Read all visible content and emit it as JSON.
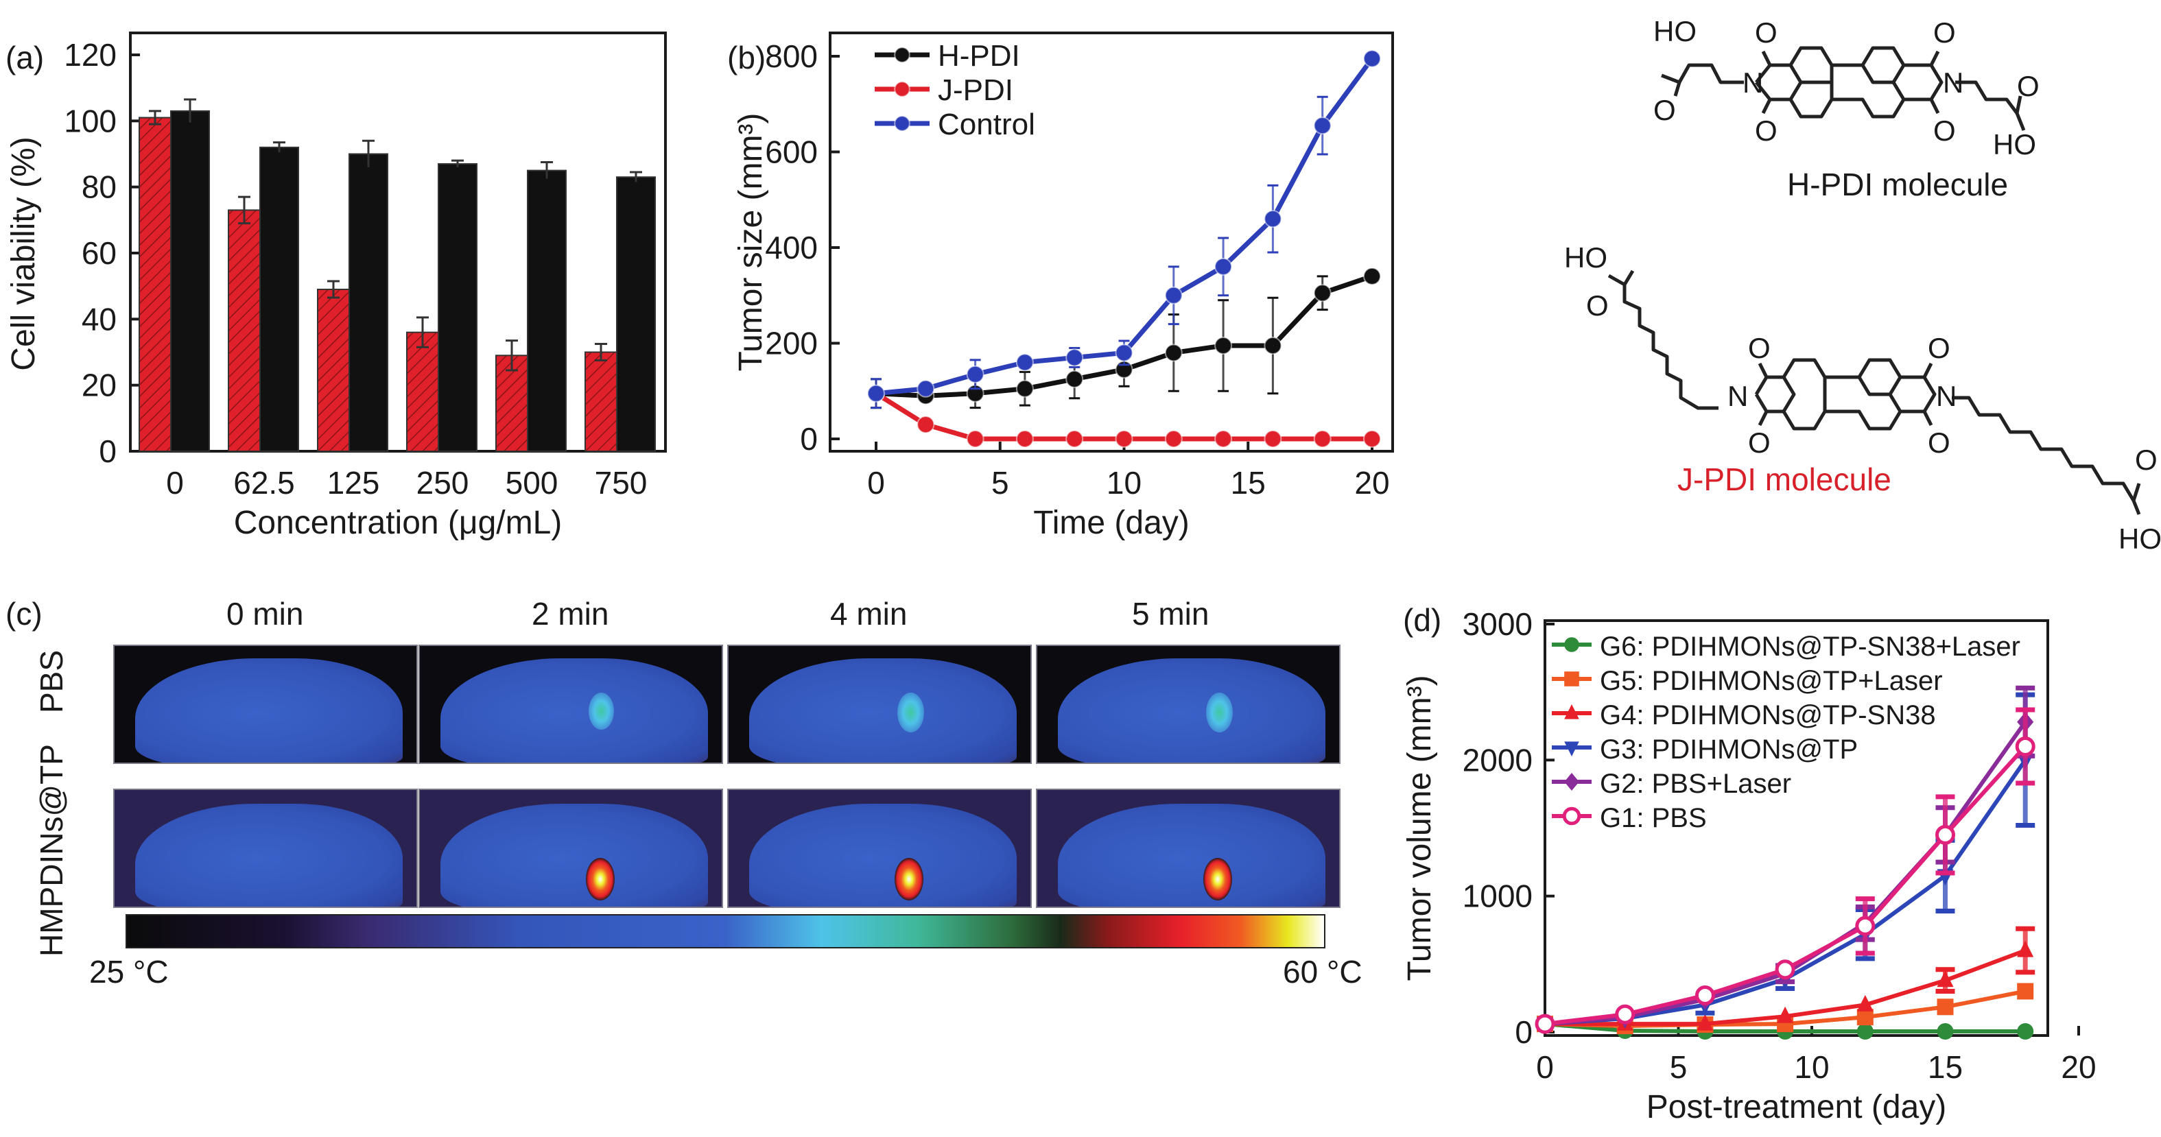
{
  "chart_data": [
    {
      "id": "a",
      "panel_label": "(a)",
      "type": "bar",
      "title": "",
      "xlabel": "Concentration (μg/mL)",
      "ylabel": "Cell viability (%)",
      "categories": [
        "0",
        "62.5",
        "125",
        "250",
        "500",
        "750"
      ],
      "ylim": [
        0,
        120
      ],
      "yticks": [
        0,
        20,
        40,
        60,
        80,
        100,
        120
      ],
      "legend": "none",
      "series": [
        {
          "name": "red-hatched",
          "color": "#e0202a",
          "pattern": "hatched",
          "values": [
            101,
            73,
            49,
            36,
            29,
            30
          ],
          "errors": [
            2,
            4,
            2.5,
            4.5,
            4.5,
            2.5
          ]
        },
        {
          "name": "black",
          "color": "#111111",
          "pattern": "solid",
          "values": [
            103,
            92,
            90,
            87,
            85,
            83
          ],
          "errors": [
            3.5,
            1.5,
            4,
            1,
            2.5,
            1.5
          ]
        }
      ]
    },
    {
      "id": "b",
      "panel_label": "(b)",
      "type": "line",
      "title": "",
      "xlabel": "Time (day)",
      "ylabel": "Tumor size (mm³)",
      "xlim": [
        -2,
        22
      ],
      "xticks": [
        0,
        5,
        10,
        15,
        20
      ],
      "ylim": [
        -20,
        850
      ],
      "yticks": [
        0,
        200,
        400,
        600,
        800
      ],
      "legend": "top-left",
      "x": [
        0,
        2,
        4,
        6,
        8,
        10,
        12,
        14,
        16,
        18,
        20
      ],
      "series": [
        {
          "name": "H-PDI",
          "color": "#111111",
          "values": [
            95,
            90,
            95,
            105,
            125,
            145,
            180,
            195,
            195,
            305,
            340
          ],
          "errors": [
            30,
            10,
            30,
            35,
            40,
            35,
            80,
            95,
            100,
            35,
            0
          ]
        },
        {
          "name": "J-PDI",
          "color": "#e0202a",
          "values": [
            95,
            30,
            0,
            0,
            0,
            0,
            0,
            0,
            0,
            0,
            0
          ],
          "errors": [
            0,
            0,
            0,
            0,
            0,
            0,
            0,
            0,
            0,
            0,
            0
          ]
        },
        {
          "name": "Control",
          "color": "#2c3fb8",
          "values": [
            95,
            105,
            135,
            160,
            170,
            180,
            300,
            360,
            460,
            655,
            795
          ],
          "errors": [
            30,
            0,
            30,
            0,
            20,
            25,
            60,
            60,
            70,
            60,
            0
          ]
        }
      ]
    },
    {
      "id": "d",
      "panel_label": "(d)",
      "type": "line",
      "title": "",
      "xlabel": "Post-treatment (day)",
      "ylabel": "Tumor volume (mm³)",
      "xlim": [
        0,
        20
      ],
      "xticks": [
        0,
        5,
        10,
        15,
        20
      ],
      "ylim": [
        -100,
        3000
      ],
      "yticks": [
        0,
        1000,
        2000,
        3000
      ],
      "legend": "top-left",
      "x": [
        0,
        3,
        6,
        9,
        12,
        15,
        18
      ],
      "series": [
        {
          "name": "G6: PDIHMONs@TP-SN38+Laser",
          "color": "#2e8b3a",
          "marker": "circle",
          "values": [
            60,
            10,
            5,
            5,
            5,
            5,
            5
          ],
          "errors": [
            0,
            0,
            0,
            0,
            0,
            0,
            0
          ]
        },
        {
          "name": "G5: PDIHMONs@TP+Laser",
          "color": "#f05a22",
          "marker": "square",
          "values": [
            60,
            45,
            55,
            60,
            110,
            185,
            300
          ],
          "errors": [
            0,
            0,
            0,
            0,
            0,
            0,
            0
          ]
        },
        {
          "name": "G4: PDIHMONs@TP-SN38",
          "color": "#e8202a",
          "marker": "triangle-up",
          "values": [
            60,
            60,
            60,
            115,
            200,
            380,
            600
          ],
          "errors": [
            0,
            0,
            0,
            0,
            0,
            80,
            160
          ]
        },
        {
          "name": "G3: PDIHMONs@TP",
          "color": "#2c46b8",
          "marker": "triangle-down",
          "values": [
            60,
            100,
            200,
            390,
            720,
            1150,
            2000
          ],
          "errors": [
            0,
            0,
            60,
            70,
            180,
            260,
            480
          ]
        },
        {
          "name": "G2: PBS+Laser",
          "color": "#8a2b9a",
          "marker": "diamond",
          "values": [
            60,
            110,
            240,
            430,
            800,
            1450,
            2280
          ],
          "errors": [
            0,
            0,
            0,
            60,
            120,
            200,
            250
          ]
        },
        {
          "name": "G1: PBS",
          "color": "#e0207a",
          "marker": "open-circle",
          "values": [
            60,
            130,
            270,
            460,
            780,
            1450,
            2100
          ],
          "errors": [
            0,
            0,
            0,
            0,
            200,
            280,
            270
          ]
        }
      ]
    }
  ],
  "molecules": {
    "h_pdi": {
      "label": "H-PDI molecule",
      "label_color": "#1a1a1a",
      "atoms": {
        "ho_left": "HO",
        "o_left": "O",
        "ho_right": "HO",
        "o_right": "O",
        "n": "N",
        "o": "O"
      }
    },
    "j_pdi": {
      "label": "J-PDI molecule",
      "label_color": "#d8202a",
      "atoms": {
        "ho_left": "HO",
        "o_left": "O",
        "ho_right": "HO",
        "o_right": "O",
        "n": "N",
        "o": "O"
      }
    }
  },
  "thermal": {
    "panel_label": "(c)",
    "time_labels": [
      "0 min",
      "2 min",
      "4 min",
      "5 min"
    ],
    "row_labels": [
      "PBS",
      "HMPDINs@TP"
    ],
    "hotspot_intensity": {
      "PBS": [
        0,
        0.35,
        0.45,
        0.45
      ],
      "HMPDINs@TP": [
        0,
        1,
        1,
        1
      ]
    },
    "colorbar": {
      "min_label": "25 °C",
      "max_label": "60 °C",
      "min": 25,
      "max": 60
    }
  }
}
